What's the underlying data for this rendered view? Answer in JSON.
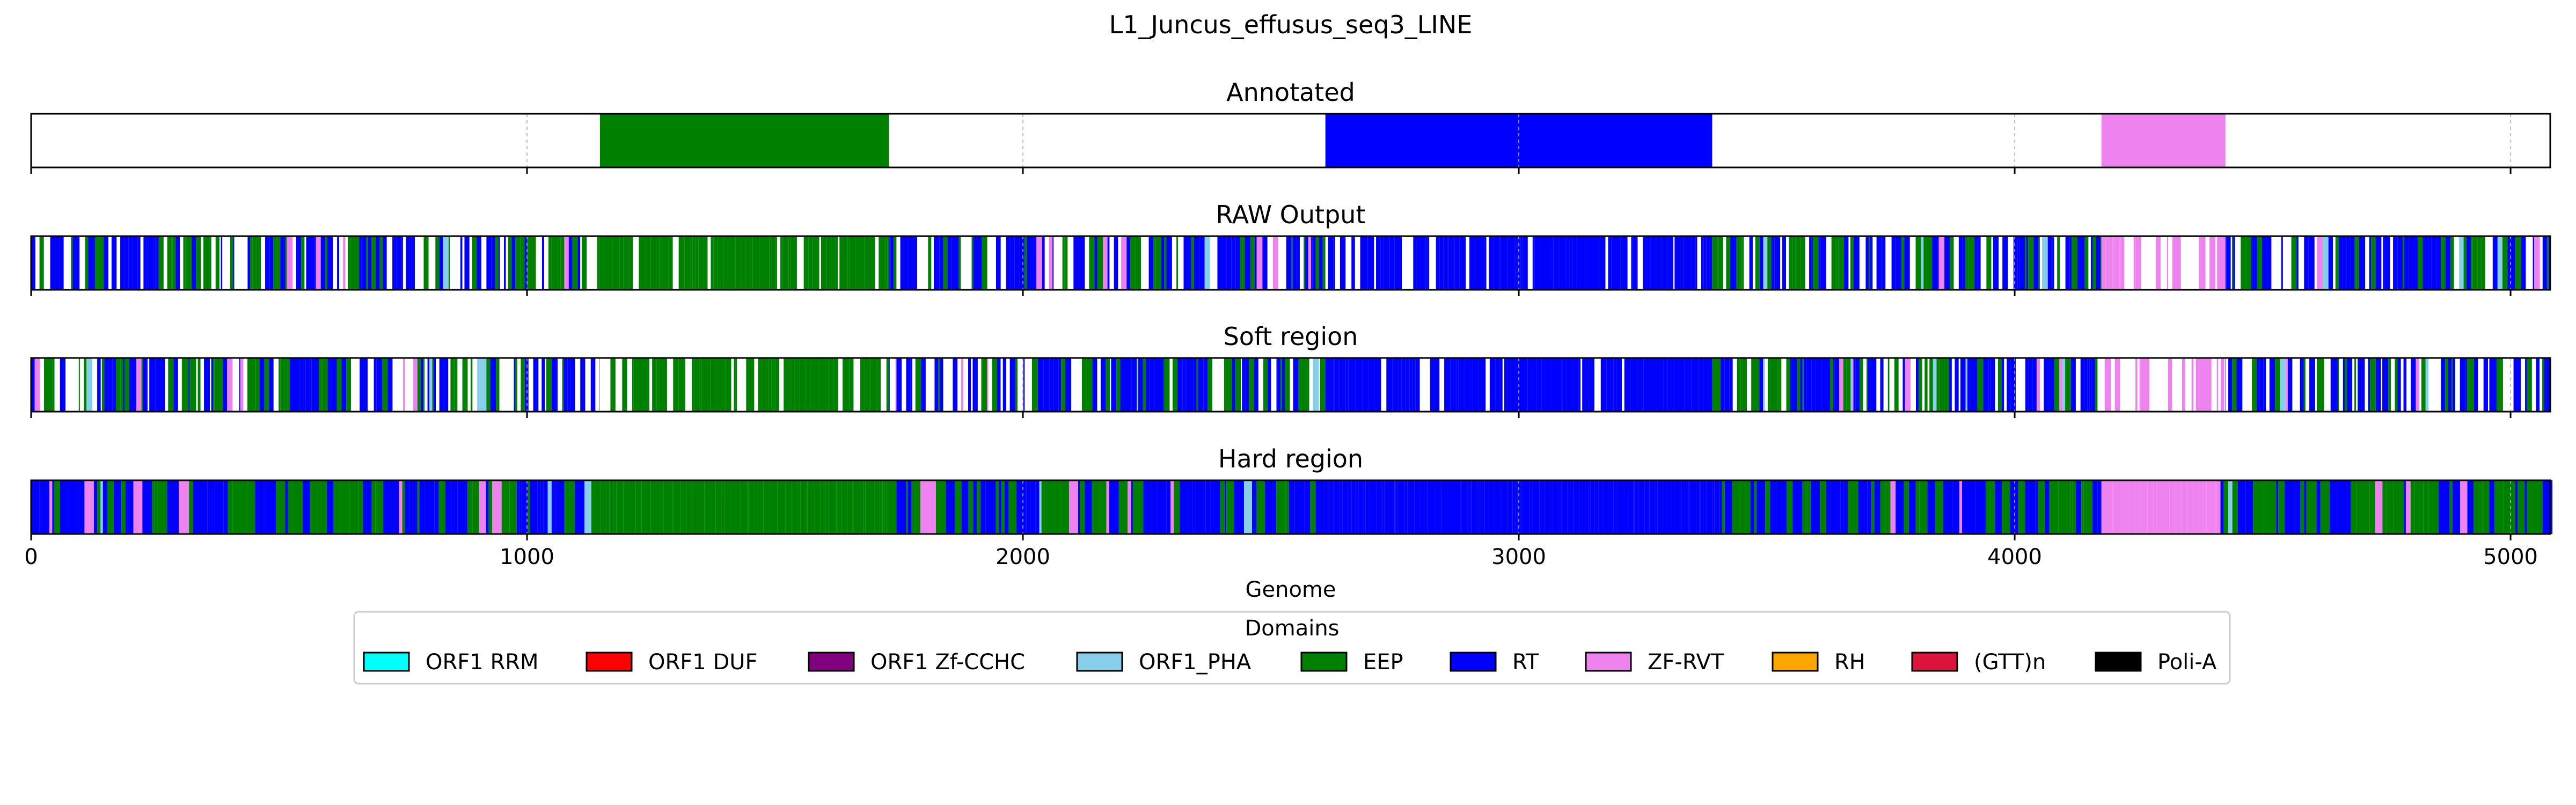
{
  "figure": {
    "title": "L1_Juncus_effusus_seq3_LINE"
  },
  "chart_data": {
    "type": "bar",
    "orientation": "horizontal-tracks",
    "xlabel": "Genome",
    "xlim": [
      0,
      5080
    ],
    "xticks": [
      0,
      1000,
      2000,
      3000,
      4000,
      5000
    ],
    "xtick_labels": [
      "0",
      "1000",
      "2000",
      "3000",
      "4000",
      "5000"
    ],
    "grid": true,
    "legend_title": "Domains",
    "legend_position": "bottom-center",
    "domains": [
      {
        "name": "ORF1 RRM",
        "color": "#00ffff"
      },
      {
        "name": "ORF1 DUF",
        "color": "#ff0000"
      },
      {
        "name": "ORF1 Zf-CCHC",
        "color": "#800080"
      },
      {
        "name": "ORF1_PHA",
        "color": "#87ceeb"
      },
      {
        "name": "EEP",
        "color": "#008000"
      },
      {
        "name": "RT",
        "color": "#0000ff"
      },
      {
        "name": "ZF-RVT",
        "color": "#ee82ee"
      },
      {
        "name": "RH",
        "color": "#ffa500"
      },
      {
        "name": "(GTT)n",
        "color": "#dc143c"
      },
      {
        "name": "Poli-A",
        "color": "#000000"
      }
    ],
    "tracks": [
      {
        "title": "Annotated",
        "segments": [
          {
            "start": 1147,
            "end": 1730,
            "domain": "EEP"
          },
          {
            "start": 2610,
            "end": 3390,
            "domain": "RT"
          },
          {
            "start": 4175,
            "end": 4425,
            "domain": "ZF-RVT"
          }
        ]
      },
      {
        "title": "RAW Output",
        "noisy": true,
        "segments": [
          {
            "start": 1147,
            "end": 1730,
            "domain": "EEP",
            "density": 0.82
          },
          {
            "start": 2610,
            "end": 3390,
            "domain": "RT",
            "density": 0.88
          },
          {
            "start": 4175,
            "end": 4425,
            "domain": "ZF-RVT",
            "density": 0.6
          }
        ]
      },
      {
        "title": "Soft region",
        "noisy": true,
        "segments": [
          {
            "start": 1147,
            "end": 1730,
            "domain": "EEP",
            "density": 0.82
          },
          {
            "start": 2610,
            "end": 3390,
            "domain": "RT",
            "density": 0.88
          },
          {
            "start": 4175,
            "end": 4425,
            "domain": "ZF-RVT",
            "density": 0.6
          }
        ]
      },
      {
        "title": "Hard region",
        "noisy": true,
        "segments": [
          {
            "start": 1137,
            "end": 1725,
            "domain": "EEP",
            "density": 1.0
          },
          {
            "start": 2590,
            "end": 3405,
            "domain": "RT",
            "density": 1.0
          },
          {
            "start": 4175,
            "end": 4415,
            "domain": "ZF-RVT",
            "density": 1.0
          }
        ]
      }
    ]
  }
}
